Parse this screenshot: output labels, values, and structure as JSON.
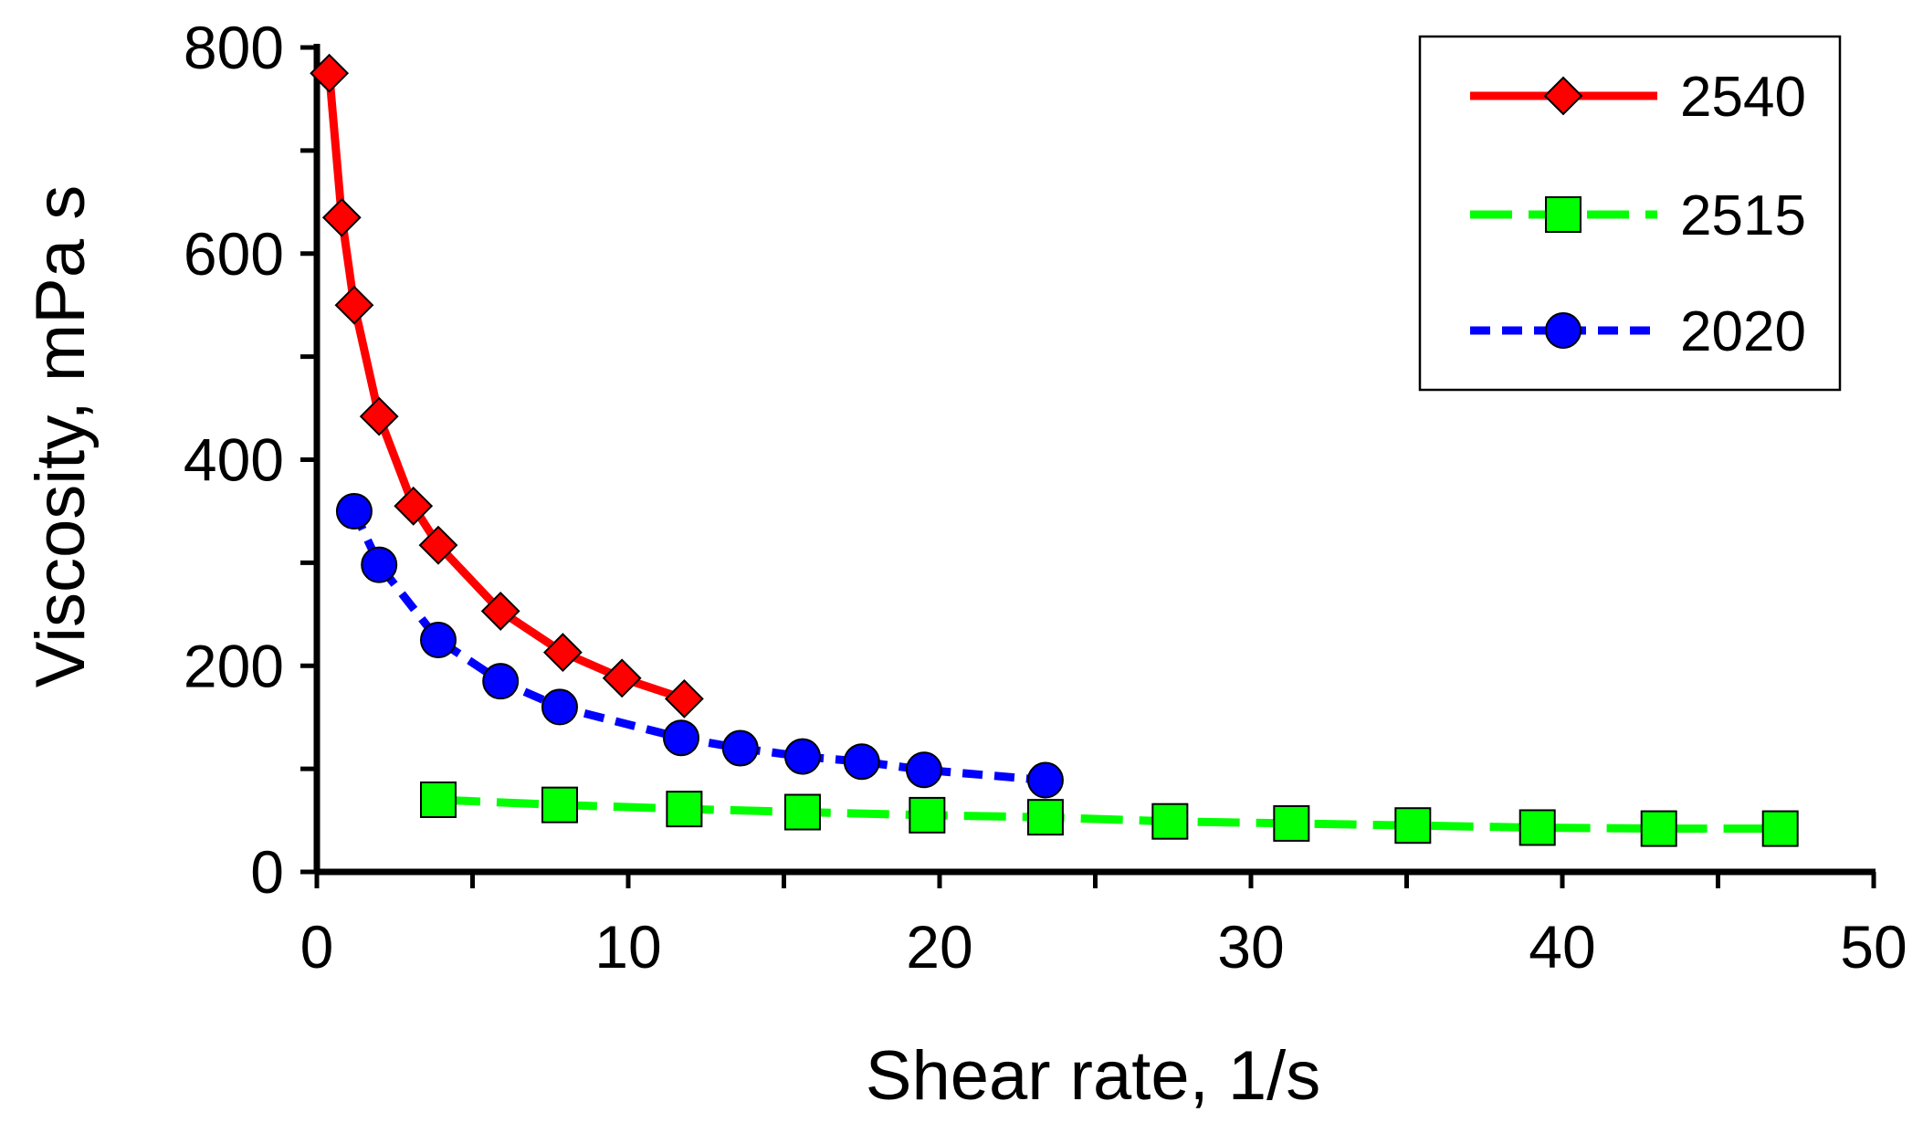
{
  "chart_data": {
    "type": "line",
    "title": "",
    "xlabel": "Shear rate, 1/s",
    "ylabel": "Viscosity, mPa s",
    "xlim": [
      0,
      50
    ],
    "ylim": [
      0,
      800
    ],
    "xticks": [
      0,
      10,
      20,
      30,
      40,
      50
    ],
    "yticks": [
      0,
      200,
      400,
      600,
      800
    ],
    "legend_position": "top-right",
    "series": [
      {
        "name": "2540",
        "color": "#ff0000",
        "marker": "diamond",
        "line": "solid",
        "x": [
          0.4,
          0.8,
          1.2,
          2.0,
          3.1,
          3.9,
          5.9,
          7.9,
          9.8,
          11.8
        ],
        "y": [
          775,
          635,
          550,
          442,
          355,
          317,
          253,
          213,
          188,
          168
        ]
      },
      {
        "name": "2515",
        "color": "#00ff00",
        "marker": "square",
        "line": "long-dash",
        "x": [
          3.9,
          7.8,
          11.8,
          15.6,
          19.6,
          23.4,
          27.4,
          31.3,
          35.2,
          39.2,
          43.1,
          47.0
        ],
        "y": [
          70,
          65,
          61,
          58,
          55,
          53,
          49,
          47,
          45,
          43,
          42,
          42
        ]
      },
      {
        "name": "2020",
        "color": "#0000ff",
        "marker": "circle",
        "line": "short-dash",
        "x": [
          1.2,
          2.0,
          3.9,
          5.9,
          7.8,
          11.7,
          13.6,
          15.6,
          17.5,
          19.5,
          23.4
        ],
        "y": [
          350,
          298,
          225,
          185,
          160,
          130,
          120,
          112,
          107,
          99,
          89
        ]
      }
    ]
  }
}
